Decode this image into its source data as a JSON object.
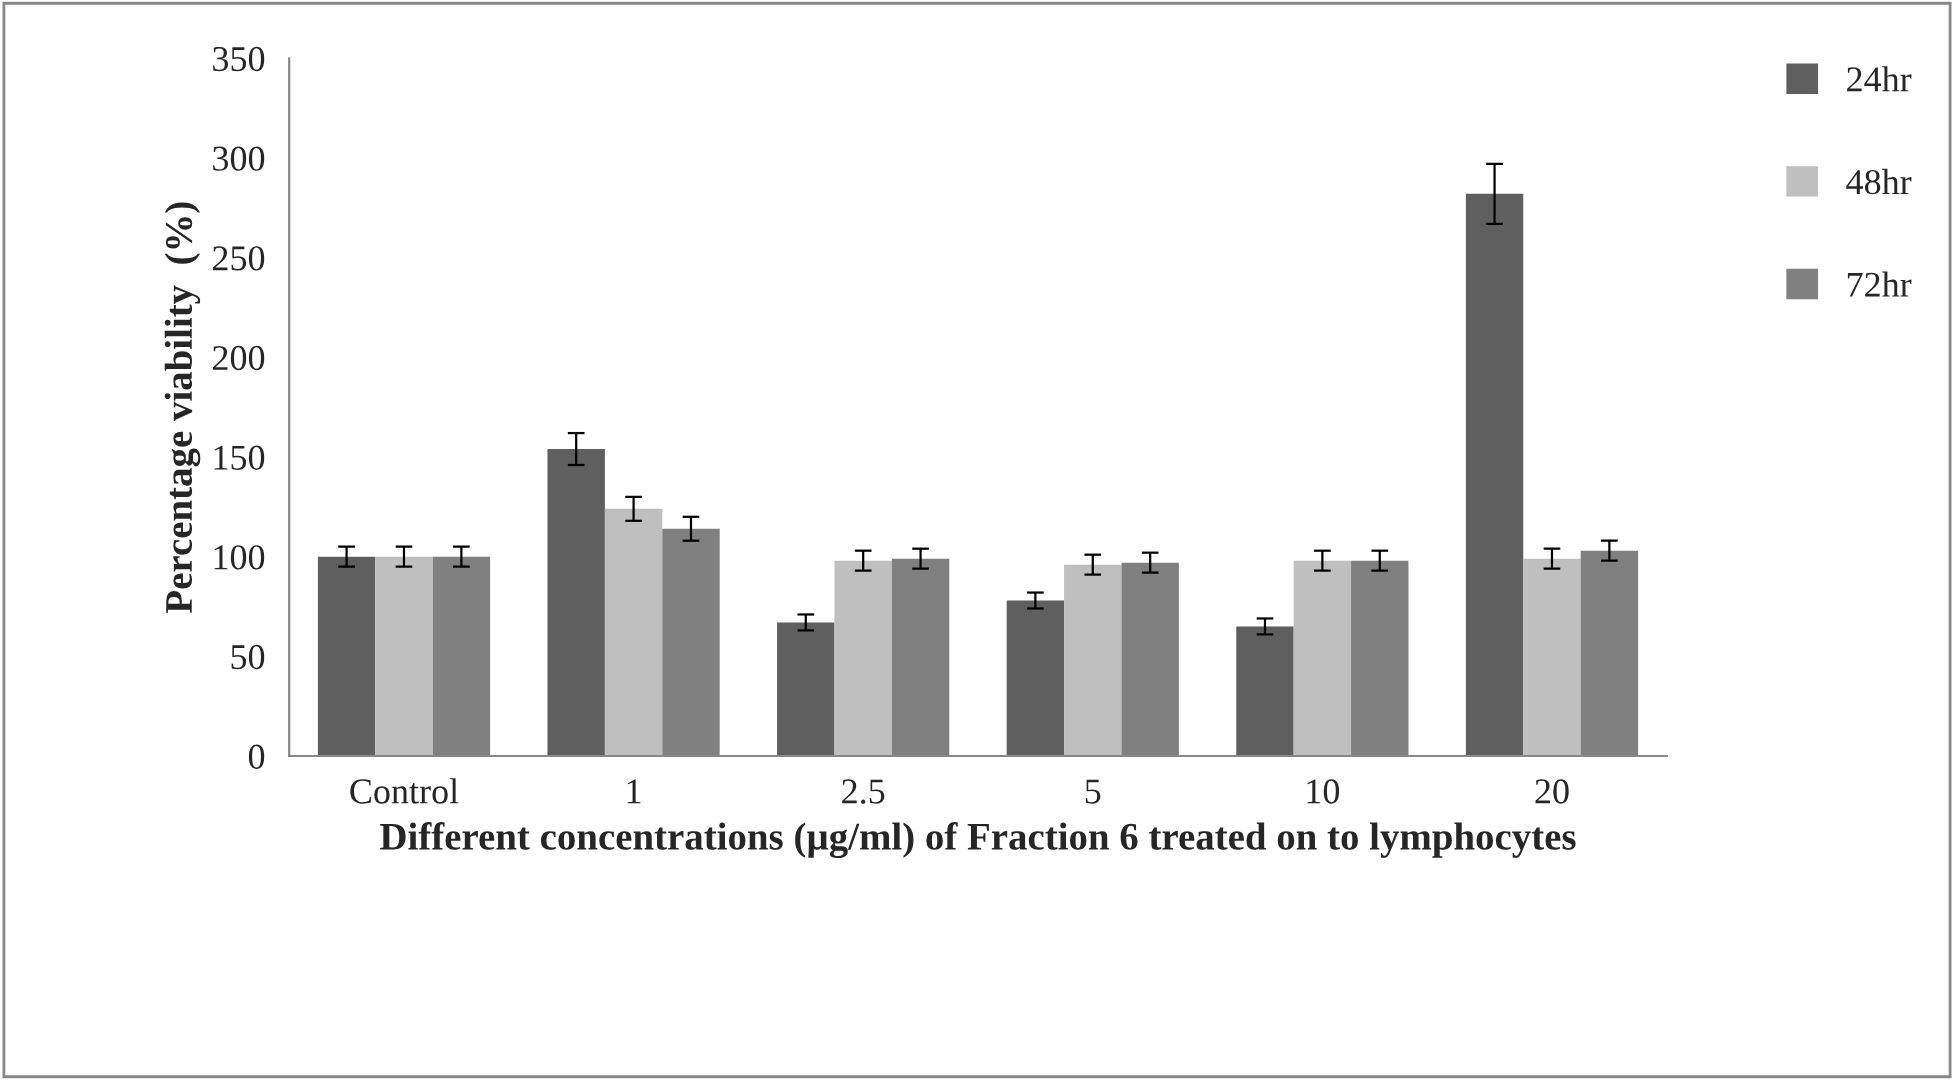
{
  "chart_data": {
    "type": "bar",
    "xlabel": "Different concentrations (µg/ml) of Fraction 6 treated on to lymphocytes",
    "ylabel": "Percentage viability  (%)",
    "categories": [
      "Control",
      "1",
      "2.5",
      "5",
      "10",
      "20"
    ],
    "series": [
      {
        "name": "24hr",
        "color": "#5f5f5f",
        "values": [
          100,
          154,
          67,
          78,
          65,
          282
        ],
        "errors": [
          5,
          8,
          4,
          4,
          4,
          15
        ]
      },
      {
        "name": "48hr",
        "color": "#bfbfbf",
        "values": [
          100,
          124,
          98,
          96,
          98,
          99
        ],
        "errors": [
          5,
          6,
          5,
          5,
          5,
          5
        ]
      },
      {
        "name": "72hr",
        "color": "#808080",
        "values": [
          100,
          114,
          99,
          97,
          98,
          103
        ],
        "errors": [
          5,
          6,
          5,
          5,
          5,
          5
        ]
      }
    ],
    "ylim": [
      0,
      350
    ],
    "yticks": [
      0,
      50,
      100,
      150,
      200,
      250,
      300,
      350
    ],
    "grid": false,
    "legend": "top right"
  }
}
